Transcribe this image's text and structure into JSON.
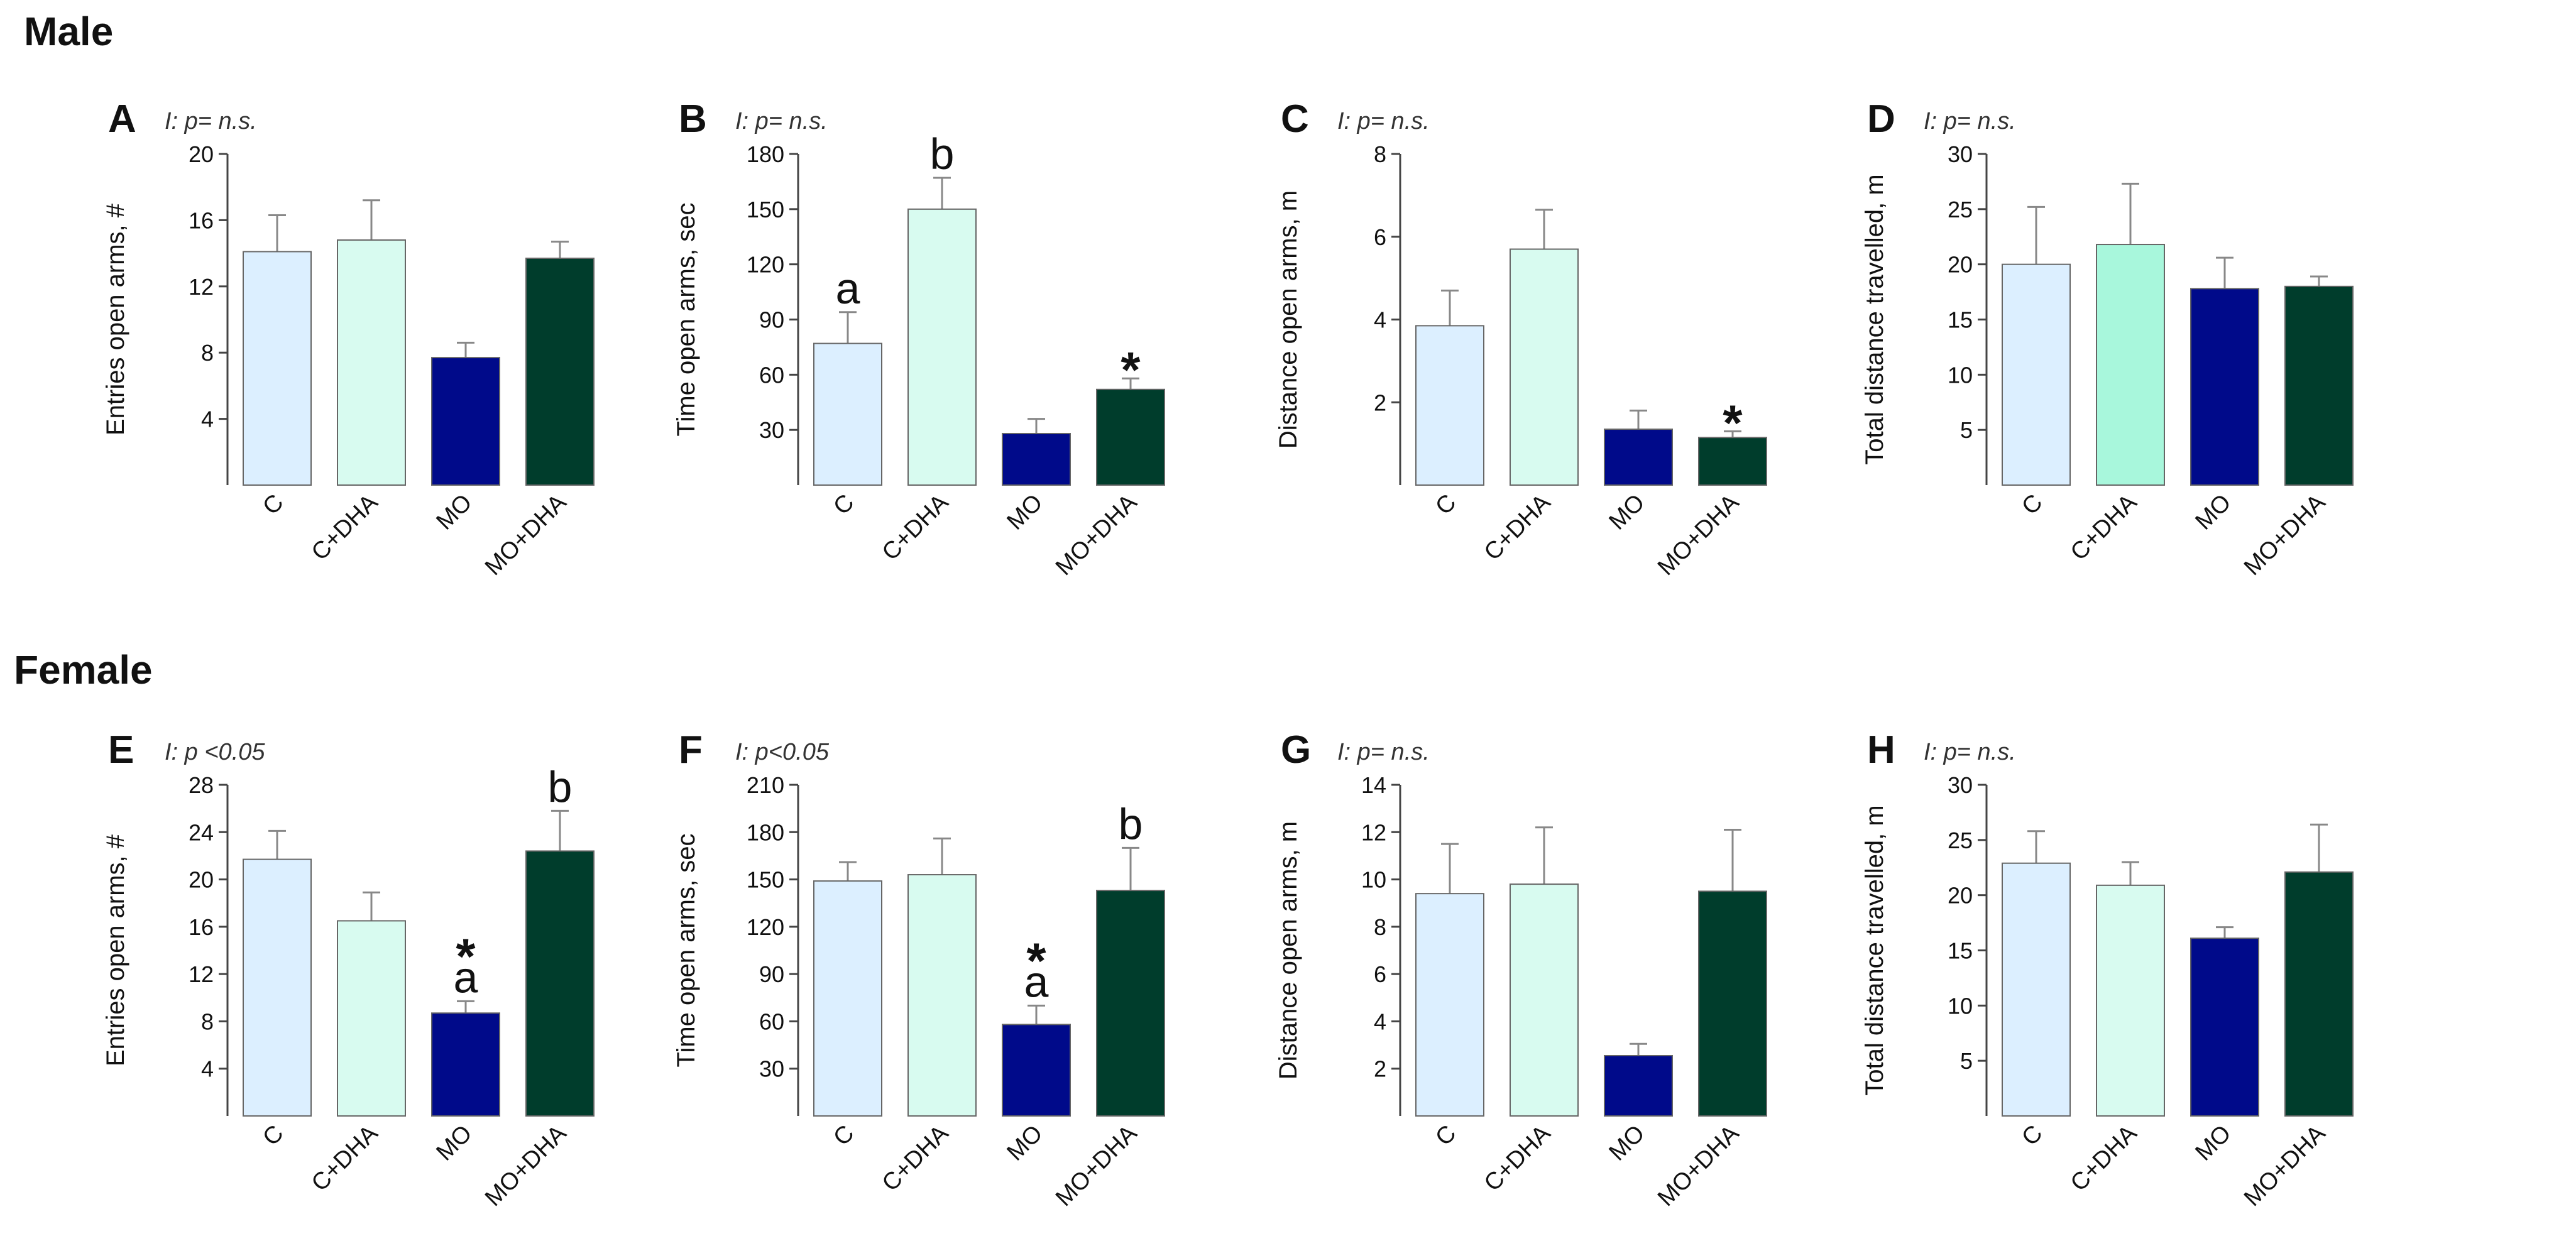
{
  "sections": {
    "male": "Male",
    "female": "Female"
  },
  "colors": {
    "C": "#dcefff",
    "C+DHA": "#d8fbf0",
    "C+DHA_bright": "#a8f7dc",
    "MO": "#000a8a",
    "MO+DHA": "#003d2c",
    "axis": "#444444",
    "bar_outline": "#666666",
    "error_bar": "#888888"
  },
  "chart_data": [
    {
      "type": "bar",
      "panel": "A",
      "interaction": "I: p= n.s.",
      "ylabel": "Entries open arms, #",
      "categories": [
        "C",
        "C+DHA",
        "MO",
        "MO+DHA"
      ],
      "values": [
        14.1,
        14.8,
        7.7,
        13.7
      ],
      "errors": [
        2.2,
        2.4,
        0.9,
        1.0
      ],
      "ylim": [
        0,
        20
      ],
      "yticks": [
        4,
        8,
        12,
        16,
        20
      ],
      "annotations": [
        [
          "",
          ""
        ],
        [
          "",
          ""
        ],
        [
          "",
          ""
        ],
        [
          "",
          ""
        ]
      ]
    },
    {
      "type": "bar",
      "panel": "B",
      "interaction": "I: p= n.s.",
      "ylabel": "Time open arms, sec",
      "categories": [
        "C",
        "C+DHA",
        "MO",
        "MO+DHA"
      ],
      "values": [
        77,
        150,
        28,
        52
      ],
      "errors": [
        17,
        17,
        8,
        6
      ],
      "ylim": [
        0,
        180
      ],
      "yticks": [
        30,
        60,
        90,
        120,
        150,
        180
      ],
      "annotations": [
        [
          "",
          "a"
        ],
        [
          "",
          "b"
        ],
        [
          "",
          ""
        ],
        [
          "*",
          ""
        ]
      ]
    },
    {
      "type": "bar",
      "panel": "C",
      "interaction": "I: p= n.s.",
      "ylabel": "Distance open arms, m",
      "categories": [
        "C",
        "C+DHA",
        "MO",
        "MO+DHA"
      ],
      "values": [
        3.85,
        5.7,
        1.35,
        1.15
      ],
      "errors": [
        0.85,
        0.95,
        0.45,
        0.15
      ],
      "ylim": [
        0,
        8
      ],
      "yticks": [
        2,
        4,
        6,
        8
      ],
      "annotations": [
        [
          "",
          ""
        ],
        [
          "",
          ""
        ],
        [
          "",
          ""
        ],
        [
          "*",
          ""
        ]
      ]
    },
    {
      "type": "bar",
      "panel": "D",
      "interaction": "I: p= n.s.",
      "ylabel": "Total distance travelled, m",
      "categories": [
        "C",
        "C+DHA",
        "MO",
        "MO+DHA"
      ],
      "values": [
        20,
        21.8,
        17.8,
        18
      ],
      "errors": [
        5.2,
        5.5,
        2.8,
        0.9
      ],
      "ylim": [
        0,
        30
      ],
      "yticks": [
        5,
        10,
        15,
        20,
        25,
        30
      ],
      "annotations": [
        [
          "",
          ""
        ],
        [
          "",
          ""
        ],
        [
          "",
          ""
        ],
        [
          "",
          ""
        ]
      ]
    },
    {
      "type": "bar",
      "panel": "E",
      "interaction": "I: p <0.05",
      "ylabel": "Entries open arms, #",
      "categories": [
        "C",
        "C+DHA",
        "MO",
        "MO+DHA"
      ],
      "values": [
        21.7,
        16.5,
        8.7,
        22.4
      ],
      "errors": [
        2.4,
        2.4,
        1.0,
        3.4
      ],
      "ylim": [
        0,
        28
      ],
      "yticks": [
        4,
        8,
        12,
        16,
        20,
        24,
        28
      ],
      "annotations": [
        [
          "",
          ""
        ],
        [
          "",
          ""
        ],
        [
          "*",
          "a"
        ],
        [
          "",
          "b"
        ]
      ]
    },
    {
      "type": "bar",
      "panel": "F",
      "interaction": "I: p<0.05",
      "ylabel": "Time open arms, sec",
      "categories": [
        "C",
        "C+DHA",
        "MO",
        "MO+DHA"
      ],
      "values": [
        149,
        153,
        58,
        143
      ],
      "errors": [
        12,
        23,
        12,
        27
      ],
      "ylim": [
        0,
        210
      ],
      "yticks": [
        30,
        60,
        90,
        120,
        150,
        180,
        210
      ],
      "annotations": [
        [
          "",
          ""
        ],
        [
          "",
          ""
        ],
        [
          "*",
          "a"
        ],
        [
          "",
          "b"
        ]
      ]
    },
    {
      "type": "bar",
      "panel": "G",
      "interaction": "I: p= n.s.",
      "ylabel": "Distance open arms, m",
      "categories": [
        "C",
        "C+DHA",
        "MO",
        "MO+DHA"
      ],
      "values": [
        9.4,
        9.8,
        2.55,
        9.5
      ],
      "errors": [
        2.1,
        2.4,
        0.5,
        2.6
      ],
      "ylim": [
        0,
        14
      ],
      "yticks": [
        2,
        4,
        6,
        8,
        10,
        12,
        14
      ],
      "annotations": [
        [
          "",
          ""
        ],
        [
          "",
          ""
        ],
        [
          "",
          ""
        ],
        [
          "",
          ""
        ]
      ]
    },
    {
      "type": "bar",
      "panel": "H",
      "interaction": "I: p= n.s.",
      "ylabel": "Total distance travelled, m",
      "categories": [
        "C",
        "C+DHA",
        "MO",
        "MO+DHA"
      ],
      "values": [
        22.9,
        20.9,
        16.1,
        22.1
      ],
      "errors": [
        2.9,
        2.1,
        1.0,
        4.3
      ],
      "ylim": [
        0,
        30
      ],
      "yticks": [
        5,
        10,
        15,
        20,
        25,
        30
      ],
      "annotations": [
        [
          "",
          ""
        ],
        [
          "",
          ""
        ],
        [
          "",
          ""
        ],
        [
          "",
          ""
        ]
      ]
    }
  ]
}
